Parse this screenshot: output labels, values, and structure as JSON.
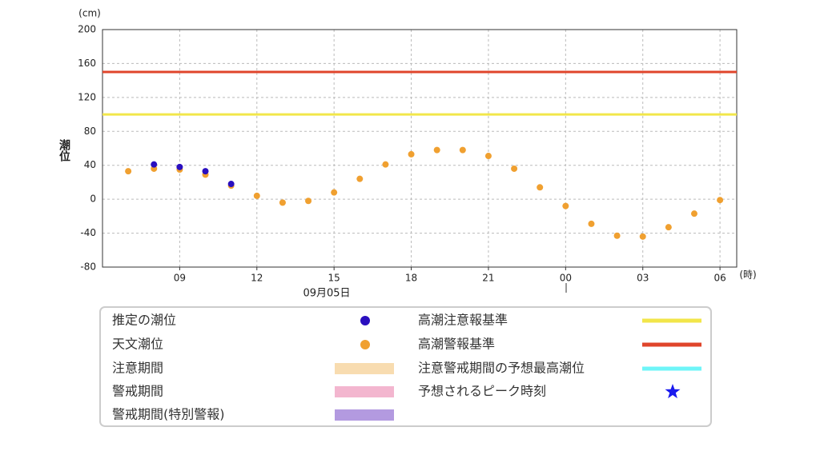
{
  "chart_data": {
    "type": "scatter",
    "y_unit": "(cm)",
    "x_unit": "(時)",
    "ylabel": "潮位",
    "date_label": "09月05日",
    "xlim": [
      6,
      30.65
    ],
    "xticks": [
      {
        "value": 9,
        "label": "09"
      },
      12,
      15,
      18,
      21,
      {
        "value": 24,
        "label": "00"
      },
      {
        "value": 27,
        "label": "03"
      },
      {
        "value": 30,
        "label": "06"
      }
    ],
    "ylim": [
      -80,
      200
    ],
    "yticks": [
      -80,
      -40,
      0,
      40,
      80,
      120,
      160,
      200
    ],
    "grid": true,
    "series": [
      {
        "name": "推定の潮位",
        "color": "#2a0fbf",
        "x": [
          8,
          9,
          10,
          11
        ],
        "values": [
          41,
          38,
          33,
          18
        ]
      },
      {
        "name": "天文潮位",
        "color": "#f0a030",
        "x": [
          7,
          8,
          9,
          10,
          11,
          12,
          13,
          14,
          15,
          16,
          17,
          18,
          19,
          20,
          21,
          22,
          23,
          24,
          25,
          26,
          27,
          28,
          29,
          30
        ],
        "values": [
          33,
          36,
          35,
          29,
          16,
          4,
          -4,
          -2,
          8,
          24,
          41,
          53,
          58,
          58,
          51,
          36,
          14,
          -8,
          -29,
          -43,
          -44,
          -33,
          -17,
          -1
        ]
      }
    ],
    "reference_lines": [
      {
        "name": "高潮注意報基準",
        "color": "#f2e64a",
        "value": 100
      },
      {
        "name": "高潮警報基準",
        "color": "#e0452b",
        "value": 150
      }
    ],
    "legend_extra": [
      {
        "name": "注意期間",
        "color": "#f8dcb0"
      },
      {
        "name": "警戒期間",
        "color": "#f3b6cf"
      },
      {
        "name": "警戒期間(特別警報)",
        "color": "#b39ae0"
      },
      {
        "name": "注意警戒期間の予想最高潮位",
        "color": "#6ef5f8"
      },
      {
        "name": "予想されるピーク時刻",
        "color": "#1a1aee"
      }
    ]
  }
}
